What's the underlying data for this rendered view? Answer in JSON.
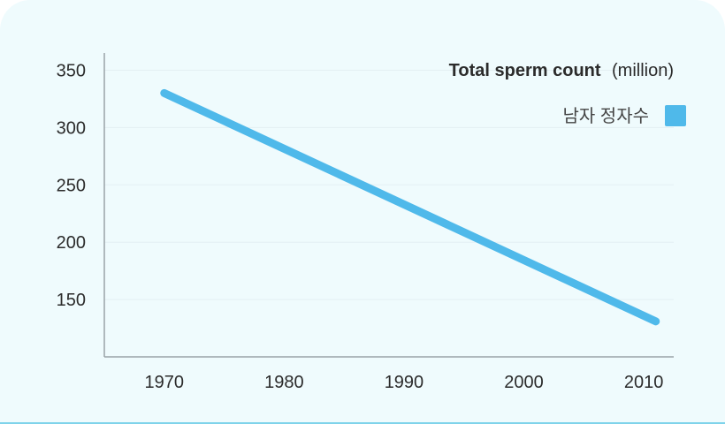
{
  "chart_data": {
    "type": "line",
    "title": "Total sperm count",
    "title_unit": "(million)",
    "x": [
      1970,
      2011
    ],
    "x_ticks": [
      "1970",
      "1980",
      "1990",
      "2000",
      "2010"
    ],
    "y_ticks": [
      "150",
      "200",
      "250",
      "300",
      "350"
    ],
    "ylim": [
      100,
      365
    ],
    "xlim": [
      1965,
      2012.5
    ],
    "series": [
      {
        "name": "남자 정자수",
        "values": [
          330,
          131
        ],
        "color": "#4fb9ea"
      }
    ],
    "grid": true,
    "legend_position": "top-right"
  },
  "colors": {
    "background": "#effbfd",
    "axis": "#9aa3a8",
    "grid": "#e3eff3",
    "accent_bottom": "#7fd3ea"
  }
}
